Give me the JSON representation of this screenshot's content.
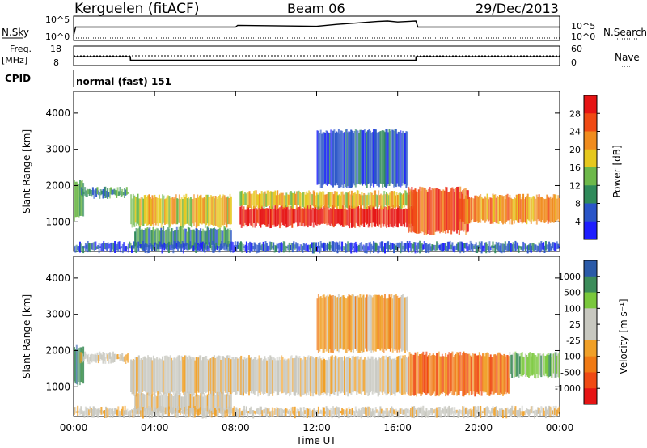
{
  "header": {
    "station": "Kerguelen (fitACF)",
    "beam": "Beam 06",
    "date": "29/Dec/2013"
  },
  "strip_labels": {
    "nsky": "N.Sky",
    "nsearch": "N.Search",
    "freq_line1": "Freq.",
    "freq_line2": "[MHz]",
    "nave": "Nave",
    "cpid": "CPID",
    "cpid_value": "normal (fast) 151"
  },
  "strip_ticks": {
    "noise_left": [
      "10^5",
      "10^0"
    ],
    "noise_right": [
      "10^5",
      "10^0"
    ],
    "freq_left": [
      "18",
      "8"
    ],
    "nave_right": [
      "60",
      "0"
    ]
  },
  "colors": {
    "power": [
      "#1e1eff",
      "#2a55c8",
      "#2f8a5a",
      "#6db84a",
      "#e6c81e",
      "#f08c1e",
      "#f04a14",
      "#e61414"
    ],
    "velocity": [
      "#e61414",
      "#f04a14",
      "#f07a14",
      "#f0a028",
      "#c8c8c0",
      "#c8c8c0",
      "#7ac83c",
      "#3c8c5a",
      "#2a5aa8"
    ],
    "ground_scatter": "#c8c8c0"
  },
  "chart_data": [
    {
      "type": "heatmap",
      "title": "",
      "xlabel": "Time UT",
      "ylabel": "Slant Range [km]",
      "x_ticks": [
        "00:00",
        "04:00",
        "08:00",
        "12:00",
        "16:00",
        "20:00",
        "00:00"
      ],
      "y_ticks": [
        "1000",
        "2000",
        "3000",
        "4000"
      ],
      "xlim_hours": [
        0,
        24
      ],
      "ylim_km": [
        180,
        4600
      ],
      "colorbar": {
        "label": "Power [dB]",
        "ticks": [
          "4",
          "8",
          "12",
          "16",
          "20",
          "24",
          "28"
        ],
        "range": [
          0,
          32
        ]
      },
      "bands": [
        {
          "t0": 0.0,
          "t1": 0.5,
          "r0": 1100,
          "r1": 2100,
          "level": 3
        },
        {
          "t0": 0.3,
          "t1": 2.7,
          "r0": 1700,
          "r1": 1900,
          "level": 2
        },
        {
          "t0": 2.8,
          "t1": 7.8,
          "r0": 900,
          "r1": 1700,
          "level": 4
        },
        {
          "t0": 3.0,
          "t1": 7.8,
          "r0": 300,
          "r1": 800,
          "level": 2
        },
        {
          "t0": 8.2,
          "t1": 16.8,
          "r0": 900,
          "r1": 1400,
          "level": 7
        },
        {
          "t0": 8.2,
          "t1": 16.8,
          "r0": 1400,
          "r1": 1800,
          "level": 4
        },
        {
          "t0": 12.0,
          "t1": 16.5,
          "r0": 2000,
          "r1": 3500,
          "level": 1
        },
        {
          "t0": 16.5,
          "t1": 19.5,
          "r0": 700,
          "r1": 1900,
          "level": 6
        },
        {
          "t0": 19.0,
          "t1": 24.0,
          "r0": 1000,
          "r1": 1700,
          "level": 5
        },
        {
          "t0": 0.0,
          "t1": 24.0,
          "r0": 200,
          "r1": 400,
          "level": 1
        }
      ]
    },
    {
      "type": "heatmap",
      "title": "",
      "xlabel": "Time UT",
      "ylabel": "Slant Range [km]",
      "x_ticks": [
        "00:00",
        "04:00",
        "08:00",
        "12:00",
        "16:00",
        "20:00",
        "00:00"
      ],
      "y_ticks": [
        "1000",
        "2000",
        "3000",
        "4000"
      ],
      "xlim_hours": [
        0,
        24
      ],
      "ylim_km": [
        180,
        4600
      ],
      "colorbar": {
        "label": "Velocity [m s⁻¹]",
        "ticks": [
          "1000",
          "500",
          "100",
          "25",
          "-25",
          "-100",
          "-500",
          "-1000"
        ],
        "range": [
          -1000,
          1000
        ]
      },
      "bands": [
        {
          "t0": 0.0,
          "t1": 0.5,
          "r0": 1100,
          "r1": 2100,
          "level": 7
        },
        {
          "t0": 0.3,
          "t1": 2.7,
          "r0": 1700,
          "r1": 1900,
          "level": 4
        },
        {
          "t0": 2.8,
          "t1": 16.5,
          "r0": 800,
          "r1": 1800,
          "level": 4
        },
        {
          "t0": 3.0,
          "t1": 7.8,
          "r0": 300,
          "r1": 800,
          "level": 4
        },
        {
          "t0": 12.0,
          "t1": 16.5,
          "r0": 2000,
          "r1": 3500,
          "level": 3
        },
        {
          "t0": 16.5,
          "t1": 21.5,
          "r0": 800,
          "r1": 1900,
          "level": 2
        },
        {
          "t0": 21.5,
          "t1": 24.0,
          "r0": 1300,
          "r1": 1900,
          "level": 6
        },
        {
          "t0": 0.0,
          "t1": 24.0,
          "r0": 200,
          "r1": 400,
          "level": 4
        }
      ]
    }
  ],
  "time_series": {
    "noise_sky_hours": [
      0,
      0.1,
      8,
      8.1,
      12,
      13,
      14,
      15,
      15.5,
      16,
      16.9,
      17,
      24
    ],
    "noise_sky_level": [
      0.2,
      0.55,
      0.55,
      0.62,
      0.58,
      0.66,
      0.72,
      0.78,
      0.8,
      0.76,
      0.8,
      0.55,
      0.55
    ],
    "freq_hours": [
      0,
      2.8,
      2.81,
      16.9,
      16.91,
      24
    ],
    "freq_mhz": [
      12.5,
      12.5,
      10.7,
      10.7,
      12.5,
      12.5
    ],
    "nave_level": 30
  }
}
